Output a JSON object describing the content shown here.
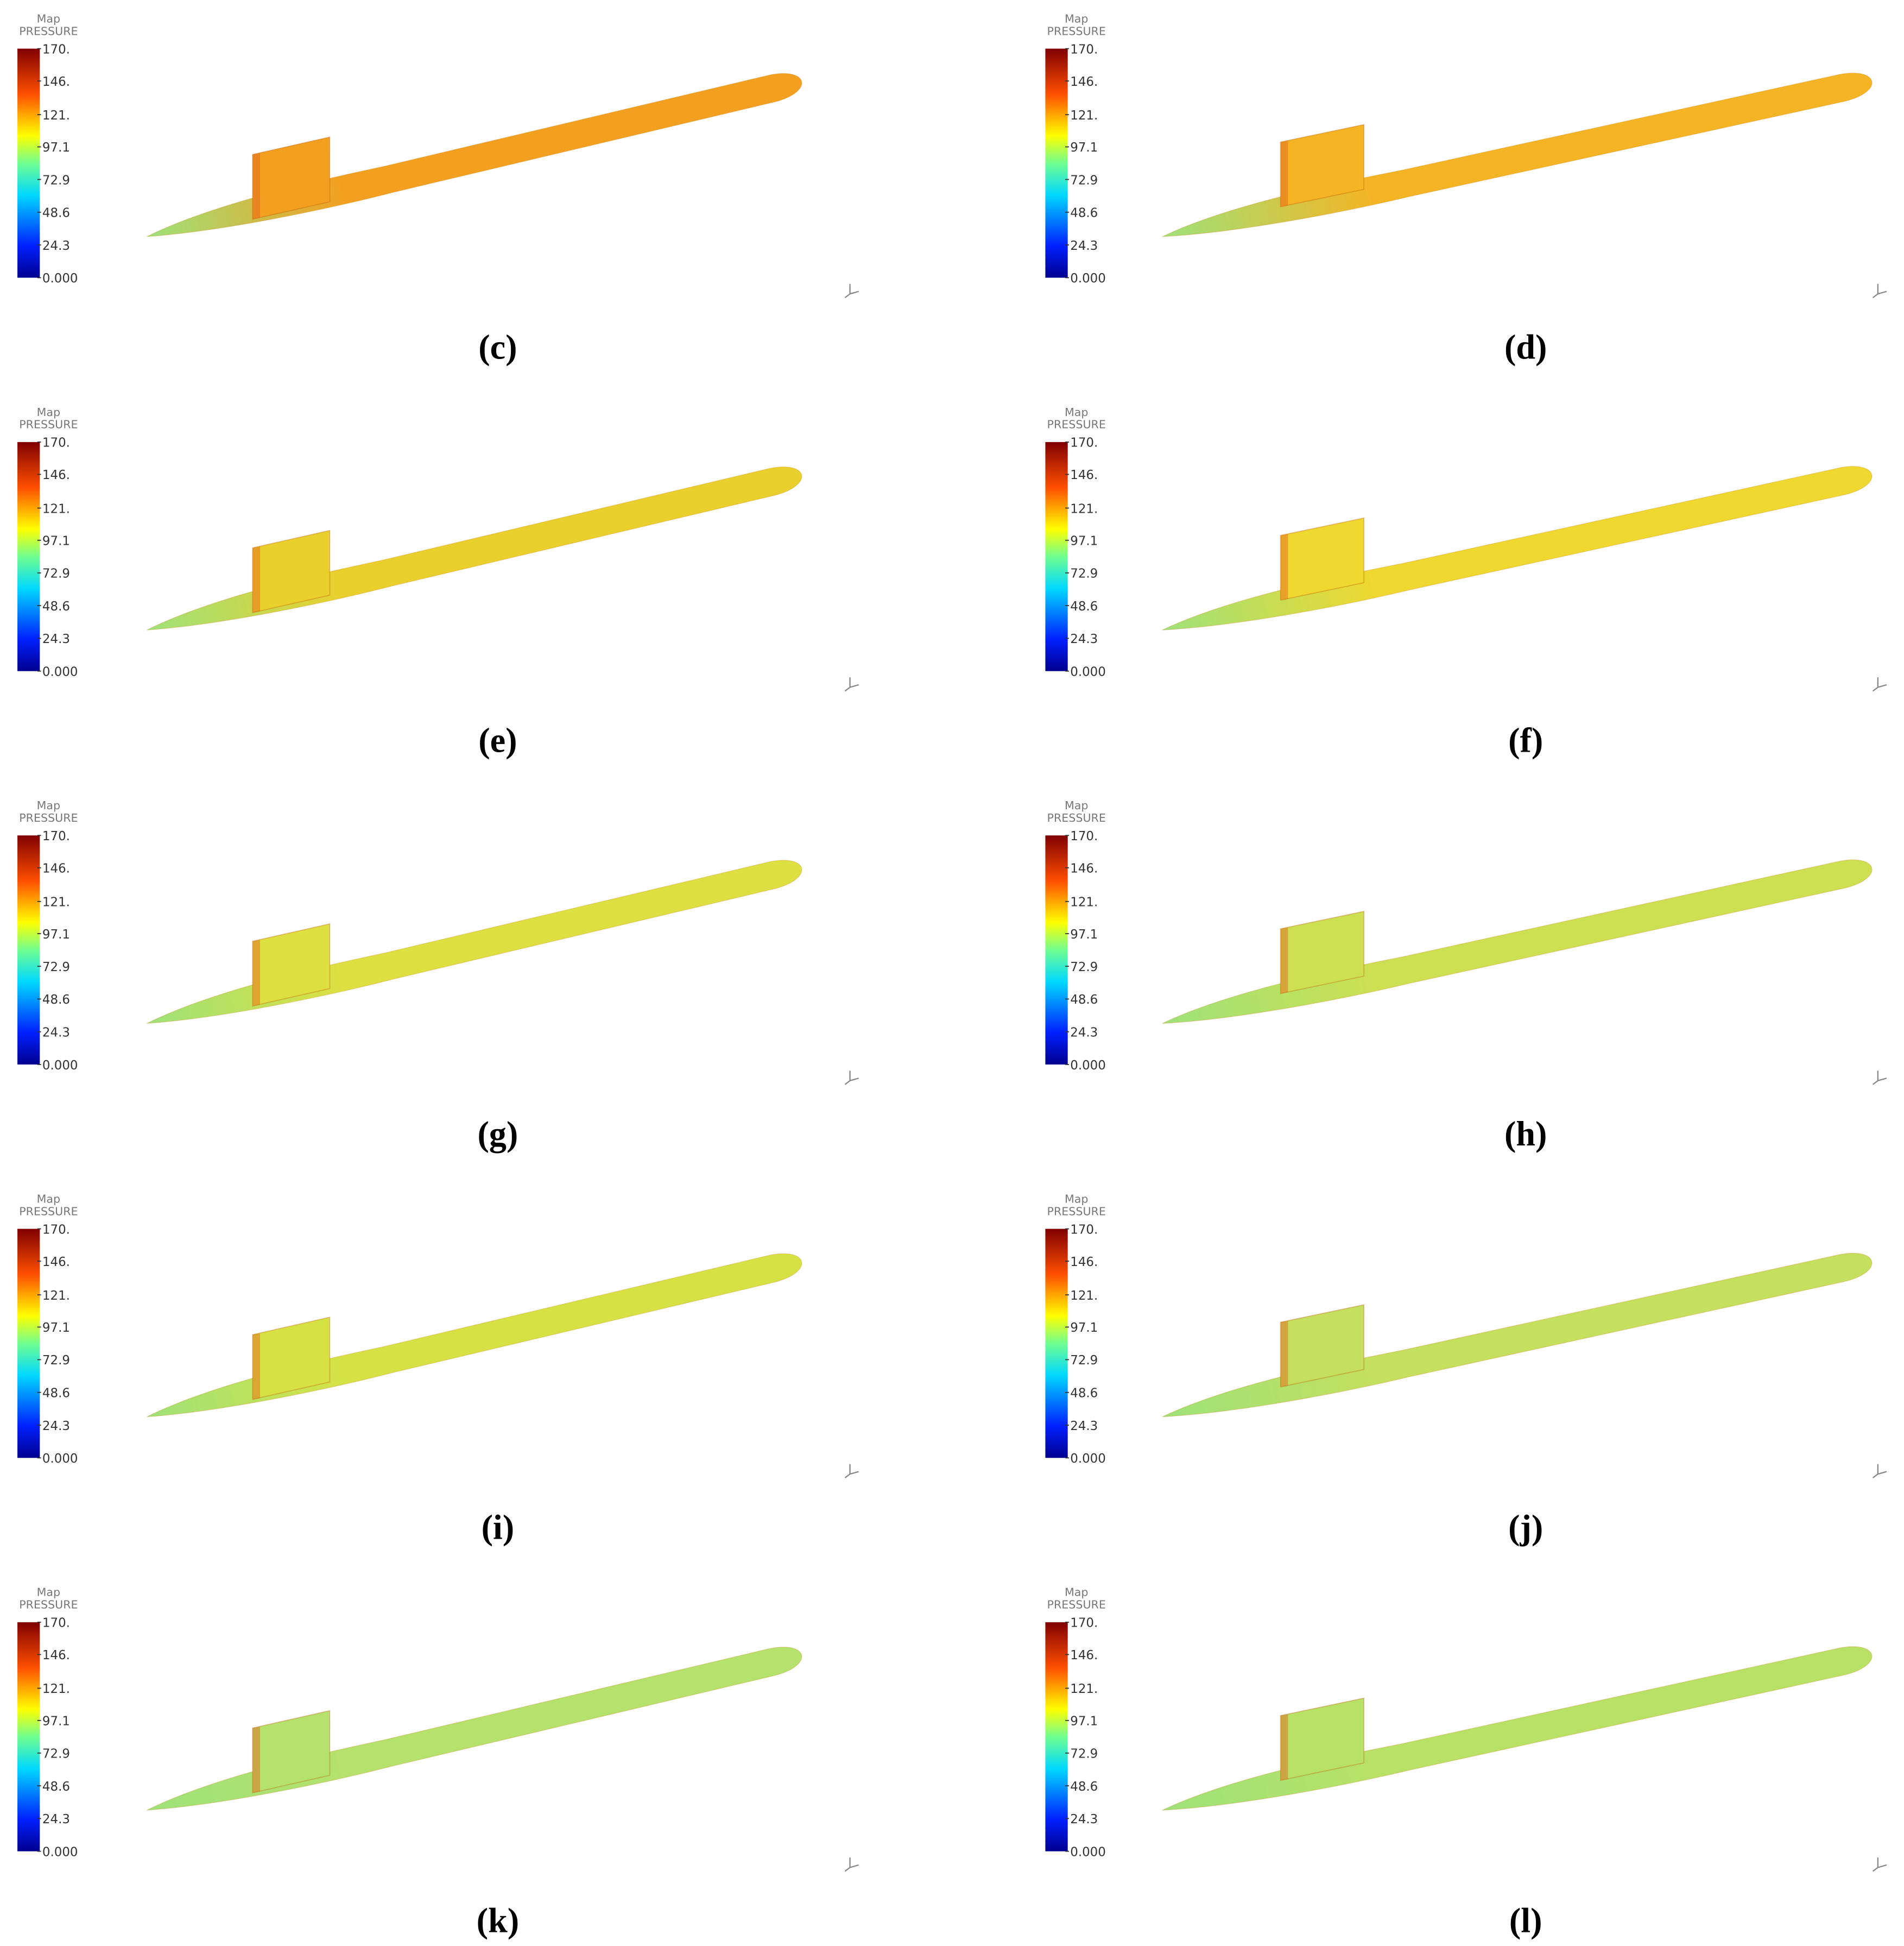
{
  "colorbar": {
    "title": "Map",
    "subtitle": "PRESSURE",
    "ticks": [
      {
        "value": 170,
        "label": "170."
      },
      {
        "value": 146,
        "label": "146."
      },
      {
        "value": 121,
        "label": "121."
      },
      97.1,
      72.9,
      48.6,
      24.3,
      {
        "value": 0,
        "label": "0.000"
      }
    ]
  },
  "panels": [
    {
      "caption": "(c)",
      "color": "#f3a020"
    },
    {
      "caption": "(d)",
      "color": "#f5b424"
    },
    {
      "caption": "(e)",
      "color": "#ead02c"
    },
    {
      "caption": "(f)",
      "color": "#efd830"
    },
    {
      "caption": "(g)",
      "color": "#dde040"
    },
    {
      "caption": "(h)",
      "color": "#cde052"
    },
    {
      "caption": "(i)",
      "color": "#d6e244"
    },
    {
      "caption": "(j)",
      "color": "#c4e05e"
    },
    {
      "caption": "(k)",
      "color": "#b4e26c"
    },
    {
      "caption": "(l)",
      "color": "#b8e266"
    }
  ]
}
